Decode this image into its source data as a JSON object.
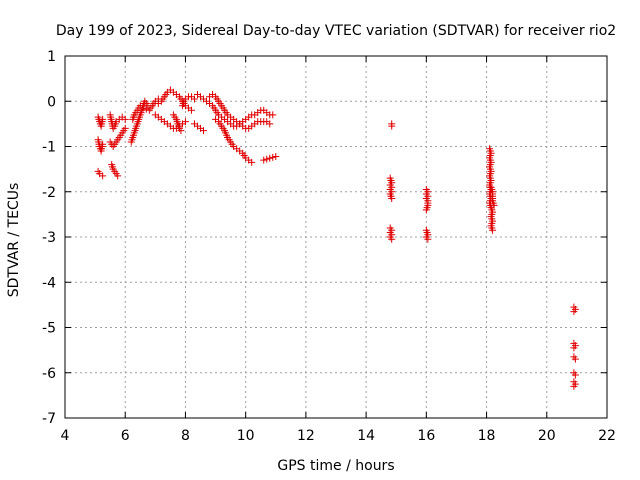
{
  "chart_data": {
    "type": "scatter",
    "title": "Day 199 of 2023, Sidereal Day-to-day VTEC variation (SDTVAR) for receiver rio2",
    "xlabel": "GPS time / hours",
    "ylabel": "SDTVAR / TECUs",
    "xlim": [
      4,
      22
    ],
    "ylim": [
      -7,
      1
    ],
    "xticks": [
      4,
      6,
      8,
      10,
      12,
      14,
      16,
      18,
      20,
      22
    ],
    "yticks": [
      1,
      0,
      -1,
      -2,
      -3,
      -4,
      -5,
      -6,
      -7
    ],
    "grid": true,
    "marker": "+",
    "color": "#e00000",
    "series": [
      {
        "name": "SDTVAR",
        "segments": [
          [
            [
              5.1,
              -0.35
            ],
            [
              5.15,
              -0.45
            ],
            [
              5.2,
              -0.55
            ],
            [
              5.25,
              -0.4
            ]
          ],
          [
            [
              5.1,
              -0.85
            ],
            [
              5.15,
              -1.0
            ],
            [
              5.2,
              -1.1
            ],
            [
              5.25,
              -0.95
            ]
          ],
          [
            [
              5.1,
              -1.55
            ],
            [
              5.15,
              -1.6
            ],
            [
              5.25,
              -1.65
            ]
          ],
          [
            [
              5.5,
              -0.3
            ],
            [
              5.55,
              -0.45
            ],
            [
              5.6,
              -0.6
            ],
            [
              5.65,
              -0.55
            ],
            [
              5.7,
              -0.45
            ],
            [
              5.8,
              -0.4
            ],
            [
              5.9,
              -0.35
            ],
            [
              6.0,
              -0.4
            ]
          ],
          [
            [
              5.5,
              -0.9
            ],
            [
              5.6,
              -1.0
            ],
            [
              5.7,
              -0.9
            ],
            [
              5.8,
              -0.8
            ],
            [
              5.9,
              -0.7
            ],
            [
              6.0,
              -0.6
            ]
          ],
          [
            [
              5.55,
              -1.4
            ],
            [
              5.6,
              -1.5
            ],
            [
              5.65,
              -1.55
            ],
            [
              5.7,
              -1.6
            ],
            [
              5.75,
              -1.65
            ]
          ],
          [
            [
              6.2,
              -0.9
            ],
            [
              6.25,
              -0.8
            ],
            [
              6.3,
              -0.7
            ],
            [
              6.35,
              -0.6
            ],
            [
              6.4,
              -0.5
            ],
            [
              6.45,
              -0.4
            ],
            [
              6.5,
              -0.3
            ],
            [
              6.55,
              -0.2
            ],
            [
              6.6,
              -0.1
            ],
            [
              6.65,
              0.0
            ],
            [
              6.7,
              -0.05
            ],
            [
              6.75,
              -0.1
            ]
          ],
          [
            [
              6.25,
              -0.4
            ],
            [
              6.3,
              -0.3
            ],
            [
              6.4,
              -0.2
            ],
            [
              6.5,
              -0.1
            ],
            [
              6.6,
              -0.15
            ],
            [
              6.8,
              -0.2
            ],
            [
              6.9,
              -0.1
            ],
            [
              7.0,
              0.0
            ],
            [
              7.1,
              0.05
            ]
          ],
          [
            [
              7.0,
              -0.3
            ],
            [
              7.1,
              -0.35
            ],
            [
              7.2,
              -0.4
            ],
            [
              7.3,
              -0.45
            ],
            [
              7.4,
              -0.5
            ],
            [
              7.5,
              -0.55
            ],
            [
              7.6,
              -0.6
            ],
            [
              7.7,
              -0.6
            ],
            [
              7.8,
              -0.55
            ],
            [
              7.9,
              -0.5
            ],
            [
              8.0,
              -0.45
            ]
          ],
          [
            [
              7.1,
              -0.05
            ],
            [
              7.2,
              0.0
            ],
            [
              7.3,
              0.1
            ],
            [
              7.4,
              0.2
            ],
            [
              7.5,
              0.25
            ],
            [
              7.6,
              0.2
            ],
            [
              7.7,
              0.15
            ],
            [
              7.8,
              0.1
            ],
            [
              7.9,
              0.0
            ],
            [
              8.0,
              -0.1
            ],
            [
              8.1,
              -0.15
            ],
            [
              8.2,
              -0.2
            ]
          ],
          [
            [
              7.6,
              -0.3
            ],
            [
              7.7,
              -0.4
            ],
            [
              7.75,
              -0.5
            ],
            [
              7.8,
              -0.6
            ],
            [
              7.85,
              -0.65
            ]
          ],
          [
            [
              7.9,
              -0.1
            ],
            [
              7.95,
              0.0
            ],
            [
              8.0,
              0.05
            ],
            [
              8.1,
              0.1
            ],
            [
              8.2,
              0.1
            ],
            [
              8.3,
              0.05
            ]
          ],
          [
            [
              8.3,
              -0.5
            ],
            [
              8.4,
              -0.55
            ],
            [
              8.5,
              -0.6
            ],
            [
              8.6,
              -0.65
            ]
          ],
          [
            [
              8.4,
              0.15
            ],
            [
              8.5,
              0.1
            ],
            [
              8.6,
              0.05
            ],
            [
              8.7,
              0.0
            ],
            [
              8.8,
              -0.05
            ],
            [
              8.9,
              -0.1
            ],
            [
              9.0,
              -0.2
            ],
            [
              9.1,
              -0.3
            ],
            [
              9.2,
              -0.35
            ],
            [
              9.3,
              -0.4
            ],
            [
              9.4,
              -0.45
            ],
            [
              9.5,
              -0.5
            ],
            [
              9.6,
              -0.55
            ],
            [
              9.7,
              -0.55
            ],
            [
              9.8,
              -0.5
            ],
            [
              9.9,
              -0.45
            ],
            [
              10.0,
              -0.4
            ],
            [
              10.1,
              -0.35
            ],
            [
              10.2,
              -0.3
            ],
            [
              10.3,
              -0.3
            ],
            [
              10.4,
              -0.25
            ],
            [
              10.5,
              -0.2
            ],
            [
              10.6,
              -0.2
            ],
            [
              10.7,
              -0.25
            ],
            [
              10.8,
              -0.3
            ],
            [
              10.9,
              -0.3
            ]
          ],
          [
            [
              8.8,
              0.1
            ],
            [
              8.9,
              0.15
            ],
            [
              9.0,
              0.1
            ],
            [
              9.1,
              0.0
            ],
            [
              9.2,
              -0.1
            ],
            [
              9.3,
              -0.2
            ],
            [
              9.4,
              -0.3
            ],
            [
              9.5,
              -0.35
            ],
            [
              9.6,
              -0.4
            ],
            [
              9.7,
              -0.45
            ],
            [
              9.8,
              -0.5
            ],
            [
              9.9,
              -0.55
            ],
            [
              10.0,
              -0.6
            ],
            [
              10.1,
              -0.6
            ],
            [
              10.2,
              -0.55
            ],
            [
              10.3,
              -0.5
            ],
            [
              10.4,
              -0.45
            ],
            [
              10.5,
              -0.45
            ],
            [
              10.6,
              -0.45
            ],
            [
              10.7,
              -0.45
            ],
            [
              10.8,
              -0.5
            ]
          ],
          [
            [
              9.0,
              -0.4
            ],
            [
              9.1,
              -0.45
            ],
            [
              9.2,
              -0.55
            ],
            [
              9.3,
              -0.65
            ],
            [
              9.4,
              -0.8
            ],
            [
              9.5,
              -0.9
            ],
            [
              9.6,
              -1.0
            ],
            [
              9.7,
              -1.05
            ],
            [
              9.8,
              -1.1
            ],
            [
              9.9,
              -1.15
            ],
            [
              10.0,
              -1.25
            ],
            [
              10.1,
              -1.3
            ],
            [
              10.2,
              -1.35
            ]
          ],
          [
            [
              10.6,
              -1.3
            ],
            [
              10.7,
              -1.28
            ],
            [
              10.8,
              -1.26
            ],
            [
              10.9,
              -1.24
            ],
            [
              11.0,
              -1.22
            ]
          ],
          [
            [
              14.85,
              -0.5
            ],
            [
              14.85,
              -0.55
            ]
          ],
          [
            [
              14.8,
              -1.7
            ],
            [
              14.85,
              -1.8
            ],
            [
              14.8,
              -1.85
            ],
            [
              14.85,
              -1.9
            ],
            [
              14.8,
              -1.95
            ],
            [
              14.85,
              -2.0
            ],
            [
              14.8,
              -2.05
            ],
            [
              14.85,
              -2.15
            ]
          ],
          [
            [
              14.8,
              -2.8
            ],
            [
              14.85,
              -2.85
            ],
            [
              14.8,
              -2.9
            ],
            [
              14.85,
              -2.95
            ],
            [
              14.8,
              -3.0
            ],
            [
              14.85,
              -3.05
            ]
          ],
          [
            [
              16.0,
              -1.95
            ],
            [
              16.05,
              -2.0
            ],
            [
              16.0,
              -2.05
            ],
            [
              16.05,
              -2.1
            ],
            [
              16.0,
              -2.15
            ],
            [
              16.05,
              -2.2
            ],
            [
              16.05,
              -2.3
            ],
            [
              16.0,
              -2.4
            ]
          ],
          [
            [
              16.0,
              -2.85
            ],
            [
              16.05,
              -2.95
            ],
            [
              16.0,
              -3.0
            ],
            [
              16.05,
              -3.05
            ]
          ],
          [
            [
              18.1,
              -1.05
            ],
            [
              18.15,
              -1.15
            ],
            [
              18.1,
              -1.25
            ],
            [
              18.15,
              -1.35
            ],
            [
              18.1,
              -1.45
            ],
            [
              18.15,
              -1.55
            ],
            [
              18.1,
              -1.65
            ],
            [
              18.15,
              -1.75
            ],
            [
              18.1,
              -1.85
            ],
            [
              18.15,
              -1.95
            ],
            [
              18.1,
              -2.05
            ],
            [
              18.15,
              -2.15
            ],
            [
              18.1,
              -2.25
            ],
            [
              18.15,
              -2.35
            ],
            [
              18.2,
              -2.45
            ],
            [
              18.15,
              -2.55
            ],
            [
              18.2,
              -2.65
            ],
            [
              18.15,
              -2.75
            ],
            [
              18.2,
              -2.85
            ]
          ],
          [
            [
              18.15,
              -1.9
            ],
            [
              18.2,
              -2.0
            ],
            [
              18.2,
              -2.2
            ],
            [
              18.25,
              -2.3
            ]
          ],
          [
            [
              20.9,
              -4.55
            ],
            [
              20.95,
              -4.6
            ],
            [
              20.9,
              -4.65
            ]
          ],
          [
            [
              20.9,
              -5.35
            ],
            [
              20.95,
              -5.4
            ],
            [
              20.9,
              -5.45
            ]
          ],
          [
            [
              20.9,
              -5.65
            ],
            [
              20.95,
              -5.7
            ]
          ],
          [
            [
              20.9,
              -6.0
            ],
            [
              20.95,
              -6.05
            ]
          ],
          [
            [
              20.9,
              -6.2
            ],
            [
              20.95,
              -6.25
            ],
            [
              20.9,
              -6.3
            ]
          ]
        ]
      }
    ]
  }
}
